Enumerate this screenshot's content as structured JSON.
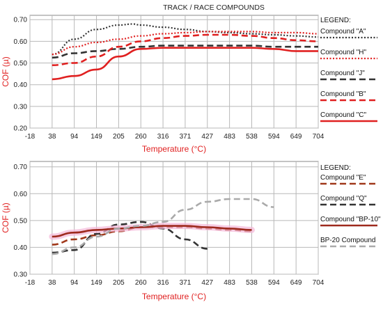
{
  "chart_data": [
    {
      "type": "line",
      "title": "TRACK / RACE COMPOUNDS",
      "xlabel": "Temperature (°C)",
      "ylabel": "COF (µ)",
      "x_ticks": [
        "-18",
        "38",
        "94",
        "149",
        "205",
        "260",
        "316",
        "371",
        "427",
        "483",
        "538",
        "594",
        "649",
        "704"
      ],
      "y_ticks": [
        "0.20",
        "0.30",
        "0.40",
        "0.50",
        "0.60",
        "0.70"
      ],
      "xlim": [
        -18,
        704
      ],
      "ylim": [
        0.2,
        0.72
      ],
      "grid": true,
      "legend_title": "LEGEND:",
      "legend_position": "right",
      "series": [
        {
          "name": "Compound \"A\"",
          "color": "#333333",
          "style": "dotted",
          "x": [
            38,
            94,
            149,
            205,
            240,
            260,
            316,
            371,
            427,
            483,
            538,
            594,
            649,
            704
          ],
          "y": [
            0.54,
            0.61,
            0.655,
            0.675,
            0.68,
            0.675,
            0.665,
            0.655,
            0.645,
            0.64,
            0.635,
            0.63,
            0.625,
            0.62
          ]
        },
        {
          "name": "Compound \"H\"",
          "color": "#e02020",
          "style": "dotted",
          "x": [
            38,
            94,
            149,
            205,
            260,
            316,
            371,
            427,
            483,
            538,
            594,
            649,
            704
          ],
          "y": [
            0.54,
            0.575,
            0.595,
            0.61,
            0.625,
            0.635,
            0.64,
            0.645,
            0.645,
            0.645,
            0.64,
            0.64,
            0.635
          ]
        },
        {
          "name": "Compound \"J\"",
          "color": "#333333",
          "style": "dashed",
          "x": [
            38,
            94,
            149,
            205,
            260,
            316,
            371,
            427,
            483,
            538,
            594,
            649,
            704
          ],
          "y": [
            0.525,
            0.545,
            0.555,
            0.565,
            0.575,
            0.58,
            0.58,
            0.58,
            0.58,
            0.58,
            0.575,
            0.575,
            0.575
          ]
        },
        {
          "name": "Compound \"B\"",
          "color": "#e02020",
          "style": "dashed",
          "x": [
            38,
            94,
            149,
            205,
            260,
            316,
            371,
            427,
            483,
            538,
            594,
            649,
            704
          ],
          "y": [
            0.49,
            0.5,
            0.53,
            0.575,
            0.6,
            0.615,
            0.625,
            0.63,
            0.63,
            0.625,
            0.615,
            0.605,
            0.6
          ]
        },
        {
          "name": "Compound \"C\"",
          "color": "#e02020",
          "style": "solid",
          "x": [
            38,
            94,
            149,
            205,
            260,
            316,
            371,
            427,
            483,
            538,
            594,
            649,
            704
          ],
          "y": [
            0.425,
            0.44,
            0.47,
            0.53,
            0.565,
            0.57,
            0.57,
            0.57,
            0.57,
            0.57,
            0.565,
            0.555,
            0.555
          ]
        }
      ]
    },
    {
      "type": "line",
      "xlabel": "Temperature (°C)",
      "ylabel": "COF (µ)",
      "x_ticks": [
        "-18",
        "38",
        "94",
        "149",
        "205",
        "260",
        "316",
        "371",
        "427",
        "483",
        "538",
        "594",
        "649",
        "704"
      ],
      "y_ticks": [
        "0.30",
        "0.40",
        "0.50",
        "0.60",
        "0.70"
      ],
      "xlim": [
        -18,
        704
      ],
      "ylim": [
        0.3,
        0.72
      ],
      "grid": true,
      "legend_title": "LEGEND:",
      "legend_position": "right",
      "series": [
        {
          "name": "Compound \"E\"",
          "color": "#a0381a",
          "style": "dashed",
          "x": [
            38,
            94,
            149,
            205,
            260,
            316,
            371,
            427,
            483,
            538
          ],
          "y": [
            0.41,
            0.43,
            0.445,
            0.46,
            0.475,
            0.475,
            0.475,
            0.47,
            0.465,
            0.46
          ]
        },
        {
          "name": "Compound \"Q\"",
          "color": "#333333",
          "style": "dashed",
          "x": [
            38,
            94,
            149,
            205,
            260,
            316,
            371,
            427
          ],
          "y": [
            0.38,
            0.39,
            0.45,
            0.485,
            0.495,
            0.47,
            0.43,
            0.395
          ]
        },
        {
          "name": "Compound \"BP-10\"",
          "color": "#9e2a1e",
          "style": "solid",
          "x": [
            38,
            94,
            149,
            205,
            260,
            316,
            371,
            427,
            483,
            538
          ],
          "y": [
            0.44,
            0.455,
            0.465,
            0.47,
            0.475,
            0.48,
            0.48,
            0.475,
            0.47,
            0.465
          ]
        },
        {
          "name": "BP-20 Compound",
          "color": "#aaaaaa",
          "style": "dashed",
          "x": [
            38,
            94,
            149,
            205,
            260,
            316,
            371,
            427,
            483,
            538,
            594
          ],
          "y": [
            0.375,
            0.4,
            0.44,
            0.47,
            0.48,
            0.495,
            0.54,
            0.57,
            0.58,
            0.58,
            0.55
          ]
        }
      ]
    }
  ]
}
